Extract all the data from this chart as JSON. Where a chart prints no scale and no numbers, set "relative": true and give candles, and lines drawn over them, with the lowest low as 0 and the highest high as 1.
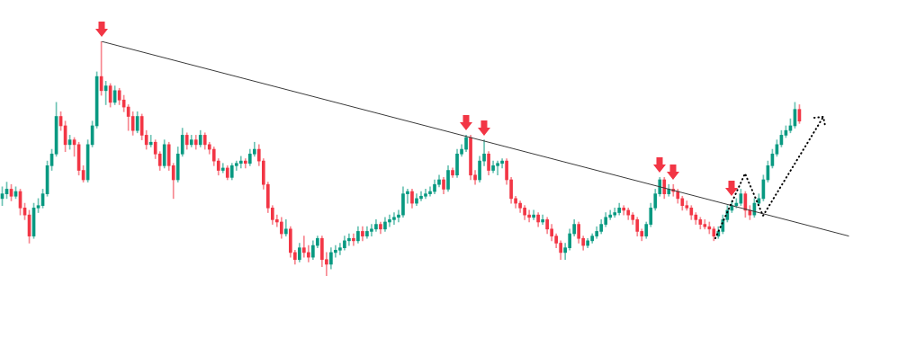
{
  "chart_data": {
    "type": "candlestick",
    "relative": true,
    "categories": [
      null,
      null,
      null,
      null,
      null,
      null,
      null,
      null,
      null,
      null,
      null,
      null,
      null,
      null,
      null,
      null,
      null,
      null,
      null,
      null,
      null,
      null,
      null,
      null,
      null,
      null,
      null,
      null,
      null,
      null,
      null,
      null,
      null,
      null,
      null,
      null,
      null,
      null,
      null,
      null,
      null,
      null,
      null,
      null,
      null,
      null,
      null,
      null,
      null,
      null,
      null,
      null,
      null,
      null,
      null,
      null,
      null,
      null,
      null,
      null,
      null,
      null,
      null,
      null,
      null,
      null,
      null,
      null,
      null,
      null,
      null,
      null,
      null,
      null,
      null,
      null,
      null,
      null,
      null,
      null,
      null,
      null,
      null,
      null,
      null,
      null,
      null,
      null,
      null,
      null,
      null,
      null,
      null,
      null,
      null,
      null,
      null,
      null,
      null,
      null,
      null,
      null,
      null,
      null,
      null,
      null,
      null,
      null,
      null,
      null,
      null,
      null,
      null,
      null,
      null,
      null,
      null,
      null,
      null,
      null,
      null,
      null,
      null,
      null,
      null,
      null,
      null,
      null,
      null,
      null,
      null,
      null,
      null,
      null,
      null,
      null,
      null,
      null,
      null,
      null,
      null,
      null,
      null,
      null,
      null,
      null,
      null,
      null,
      null,
      null,
      null,
      null,
      null,
      null,
      null,
      null,
      null,
      null,
      null,
      null,
      null,
      null,
      null,
      null,
      null,
      null,
      null,
      null,
      null,
      null,
      null,
      null,
      null,
      null,
      null,
      null,
      null,
      null,
      null,
      null,
      null,
      null,
      null,
      null,
      null,
      null,
      null,
      null,
      null
    ],
    "ohlc": [
      [
        0.33,
        0.38,
        0.3,
        0.35
      ],
      [
        0.35,
        0.4,
        0.33,
        0.37
      ],
      [
        0.37,
        0.39,
        0.32,
        0.34
      ],
      [
        0.34,
        0.38,
        0.33,
        0.36
      ],
      [
        0.36,
        0.37,
        0.26,
        0.29
      ],
      [
        0.29,
        0.31,
        0.24,
        0.26
      ],
      [
        0.26,
        0.28,
        0.14,
        0.17
      ],
      [
        0.17,
        0.31,
        0.16,
        0.29
      ],
      [
        0.29,
        0.33,
        0.27,
        0.3
      ],
      [
        0.3,
        0.37,
        0.29,
        0.35
      ],
      [
        0.35,
        0.49,
        0.34,
        0.47
      ],
      [
        0.47,
        0.54,
        0.45,
        0.52
      ],
      [
        0.52,
        0.74,
        0.51,
        0.68
      ],
      [
        0.68,
        0.7,
        0.62,
        0.64
      ],
      [
        0.64,
        0.66,
        0.53,
        0.56
      ],
      [
        0.56,
        0.6,
        0.54,
        0.58
      ],
      [
        0.58,
        0.59,
        0.51,
        0.56
      ],
      [
        0.56,
        0.57,
        0.43,
        0.45
      ],
      [
        0.45,
        0.47,
        0.4,
        0.41
      ],
      [
        0.41,
        0.58,
        0.4,
        0.56
      ],
      [
        0.56,
        0.66,
        0.55,
        0.64
      ],
      [
        0.64,
        0.87,
        0.63,
        0.85
      ],
      [
        0.85,
        1,
        0.77,
        0.79
      ],
      [
        0.79,
        0.83,
        0.73,
        0.81
      ],
      [
        0.81,
        0.82,
        0.72,
        0.74
      ],
      [
        0.74,
        0.81,
        0.73,
        0.79
      ],
      [
        0.79,
        0.8,
        0.73,
        0.75
      ],
      [
        0.75,
        0.77,
        0.7,
        0.72
      ],
      [
        0.72,
        0.73,
        0.62,
        0.68
      ],
      [
        0.68,
        0.7,
        0.6,
        0.62
      ],
      [
        0.62,
        0.7,
        0.61,
        0.68
      ],
      [
        0.68,
        0.69,
        0.58,
        0.6
      ],
      [
        0.6,
        0.62,
        0.54,
        0.56
      ],
      [
        0.56,
        0.6,
        0.55,
        0.57
      ],
      [
        0.57,
        0.58,
        0.5,
        0.52
      ],
      [
        0.52,
        0.53,
        0.45,
        0.47
      ],
      [
        0.47,
        0.58,
        0.46,
        0.56
      ],
      [
        0.56,
        0.57,
        0.45,
        0.47
      ],
      [
        0.47,
        0.48,
        0.33,
        0.41
      ],
      [
        0.41,
        0.55,
        0.4,
        0.52
      ],
      [
        0.52,
        0.63,
        0.51,
        0.6
      ],
      [
        0.6,
        0.61,
        0.54,
        0.56
      ],
      [
        0.56,
        0.6,
        0.55,
        0.58
      ],
      [
        0.58,
        0.6,
        0.54,
        0.56
      ],
      [
        0.56,
        0.62,
        0.55,
        0.6
      ],
      [
        0.6,
        0.61,
        0.54,
        0.56
      ],
      [
        0.56,
        0.57,
        0.52,
        0.54
      ],
      [
        0.54,
        0.55,
        0.47,
        0.49
      ],
      [
        0.49,
        0.5,
        0.43,
        0.45
      ],
      [
        0.45,
        0.48,
        0.44,
        0.46
      ],
      [
        0.46,
        0.47,
        0.41,
        0.42
      ],
      [
        0.42,
        0.48,
        0.41,
        0.47
      ],
      [
        0.47,
        0.49,
        0.45,
        0.48
      ],
      [
        0.48,
        0.51,
        0.46,
        0.49
      ],
      [
        0.49,
        0.5,
        0.46,
        0.48
      ],
      [
        0.48,
        0.54,
        0.47,
        0.52
      ],
      [
        0.52,
        0.57,
        0.51,
        0.54
      ],
      [
        0.54,
        0.56,
        0.47,
        0.49
      ],
      [
        0.49,
        0.5,
        0.37,
        0.39
      ],
      [
        0.39,
        0.4,
        0.27,
        0.29
      ],
      [
        0.29,
        0.3,
        0.22,
        0.24
      ],
      [
        0.24,
        0.26,
        0.21,
        0.23
      ],
      [
        0.23,
        0.25,
        0.16,
        0.18
      ],
      [
        0.18,
        0.24,
        0.17,
        0.2
      ],
      [
        0.2,
        0.21,
        0.08,
        0.1
      ],
      [
        0.1,
        0.11,
        0.05,
        0.07
      ],
      [
        0.07,
        0.14,
        0.06,
        0.12
      ],
      [
        0.12,
        0.17,
        0.08,
        0.1
      ],
      [
        0.1,
        0.13,
        0.06,
        0.08
      ],
      [
        0.08,
        0.15,
        0.07,
        0.13
      ],
      [
        0.13,
        0.17,
        0.12,
        0.16
      ],
      [
        0.16,
        0.17,
        0.04,
        0.07
      ],
      [
        0.07,
        0.1,
        0,
        0.05
      ],
      [
        0.05,
        0.12,
        0.03,
        0.1
      ],
      [
        0.1,
        0.13,
        0.08,
        0.11
      ],
      [
        0.11,
        0.14,
        0.09,
        0.12
      ],
      [
        0.12,
        0.17,
        0.11,
        0.15
      ],
      [
        0.15,
        0.18,
        0.13,
        0.16
      ],
      [
        0.16,
        0.18,
        0.13,
        0.15
      ],
      [
        0.15,
        0.21,
        0.14,
        0.19
      ],
      [
        0.19,
        0.21,
        0.15,
        0.17
      ],
      [
        0.17,
        0.21,
        0.16,
        0.19
      ],
      [
        0.19,
        0.22,
        0.17,
        0.2
      ],
      [
        0.2,
        0.24,
        0.19,
        0.22
      ],
      [
        0.22,
        0.23,
        0.18,
        0.2
      ],
      [
        0.2,
        0.25,
        0.19,
        0.23
      ],
      [
        0.23,
        0.26,
        0.21,
        0.24
      ],
      [
        0.24,
        0.27,
        0.22,
        0.25
      ],
      [
        0.25,
        0.28,
        0.23,
        0.26
      ],
      [
        0.26,
        0.38,
        0.25,
        0.35
      ],
      [
        0.35,
        0.37,
        0.31,
        0.36
      ],
      [
        0.36,
        0.37,
        0.29,
        0.31
      ],
      [
        0.31,
        0.35,
        0.3,
        0.33
      ],
      [
        0.33,
        0.36,
        0.32,
        0.34
      ],
      [
        0.34,
        0.37,
        0.33,
        0.35
      ],
      [
        0.35,
        0.38,
        0.34,
        0.36
      ],
      [
        0.36,
        0.41,
        0.35,
        0.39
      ],
      [
        0.39,
        0.43,
        0.38,
        0.41
      ],
      [
        0.41,
        0.42,
        0.35,
        0.37
      ],
      [
        0.37,
        0.47,
        0.36,
        0.45
      ],
      [
        0.45,
        0.46,
        0.42,
        0.43
      ],
      [
        0.43,
        0.54,
        0.42,
        0.52
      ],
      [
        0.52,
        0.56,
        0.51,
        0.54
      ],
      [
        0.54,
        0.6,
        0.53,
        0.59
      ],
      [
        0.59,
        0.6,
        0.41,
        0.43
      ],
      [
        0.43,
        0.45,
        0.39,
        0.41
      ],
      [
        0.41,
        0.51,
        0.4,
        0.49
      ],
      [
        0.49,
        0.58,
        0.47,
        0.52
      ],
      [
        0.52,
        0.53,
        0.43,
        0.45
      ],
      [
        0.45,
        0.49,
        0.44,
        0.47
      ],
      [
        0.47,
        0.49,
        0.43,
        0.48
      ],
      [
        0.48,
        0.5,
        0.46,
        0.49
      ],
      [
        0.49,
        0.5,
        0.39,
        0.41
      ],
      [
        0.41,
        0.42,
        0.31,
        0.33
      ],
      [
        0.33,
        0.34,
        0.29,
        0.31
      ],
      [
        0.31,
        0.32,
        0.27,
        0.29
      ],
      [
        0.29,
        0.3,
        0.24,
        0.26
      ],
      [
        0.26,
        0.28,
        0.23,
        0.25
      ],
      [
        0.25,
        0.28,
        0.24,
        0.26
      ],
      [
        0.26,
        0.27,
        0.21,
        0.23
      ],
      [
        0.23,
        0.26,
        0.22,
        0.24
      ],
      [
        0.24,
        0.25,
        0.18,
        0.2
      ],
      [
        0.2,
        0.22,
        0.15,
        0.17
      ],
      [
        0.17,
        0.18,
        0.12,
        0.14
      ],
      [
        0.14,
        0.15,
        0.07,
        0.1
      ],
      [
        0.1,
        0.14,
        0.07,
        0.12
      ],
      [
        0.12,
        0.2,
        0.11,
        0.18
      ],
      [
        0.18,
        0.24,
        0.17,
        0.22
      ],
      [
        0.22,
        0.23,
        0.14,
        0.16
      ],
      [
        0.16,
        0.17,
        0.11,
        0.13
      ],
      [
        0.13,
        0.16,
        0.12,
        0.15
      ],
      [
        0.15,
        0.18,
        0.14,
        0.17
      ],
      [
        0.17,
        0.21,
        0.16,
        0.19
      ],
      [
        0.19,
        0.24,
        0.18,
        0.22
      ],
      [
        0.22,
        0.27,
        0.21,
        0.25
      ],
      [
        0.25,
        0.28,
        0.24,
        0.26
      ],
      [
        0.26,
        0.29,
        0.25,
        0.27
      ],
      [
        0.27,
        0.31,
        0.26,
        0.29
      ],
      [
        0.29,
        0.3,
        0.26,
        0.28
      ],
      [
        0.28,
        0.29,
        0.24,
        0.26
      ],
      [
        0.26,
        0.27,
        0.22,
        0.24
      ],
      [
        0.24,
        0.25,
        0.17,
        0.19
      ],
      [
        0.19,
        0.2,
        0.15,
        0.17
      ],
      [
        0.17,
        0.23,
        0.16,
        0.22
      ],
      [
        0.22,
        0.31,
        0.21,
        0.29
      ],
      [
        0.29,
        0.37,
        0.28,
        0.35
      ],
      [
        0.35,
        0.42,
        0.34,
        0.41
      ],
      [
        0.41,
        0.42,
        0.33,
        0.35
      ],
      [
        0.35,
        0.39,
        0.34,
        0.37
      ],
      [
        0.37,
        0.39,
        0.34,
        0.36
      ],
      [
        0.36,
        0.37,
        0.31,
        0.33
      ],
      [
        0.33,
        0.34,
        0.28,
        0.3
      ],
      [
        0.3,
        0.32,
        0.28,
        0.29
      ],
      [
        0.29,
        0.3,
        0.24,
        0.26
      ],
      [
        0.26,
        0.27,
        0.22,
        0.24
      ],
      [
        0.24,
        0.25,
        0.2,
        0.22
      ],
      [
        0.22,
        0.24,
        0.2,
        0.21
      ],
      [
        0.21,
        0.23,
        0.18,
        0.2
      ],
      [
        0.2,
        0.21,
        0.15,
        0.17
      ],
      [
        0.17,
        0.21,
        0.16,
        0.19
      ],
      [
        0.19,
        0.26,
        0.18,
        0.24
      ],
      [
        0.24,
        0.3,
        0.23,
        0.28
      ],
      [
        0.28,
        0.32,
        0.27,
        0.3
      ],
      [
        0.3,
        0.33,
        0.29,
        0.31
      ],
      [
        0.31,
        0.37,
        0.3,
        0.35
      ],
      [
        0.35,
        0.36,
        0.25,
        0.28
      ],
      [
        0.28,
        0.3,
        0.24,
        0.26
      ],
      [
        0.26,
        0.33,
        0.25,
        0.31
      ],
      [
        0.31,
        0.35,
        0.3,
        0.33
      ],
      [
        0.33,
        0.43,
        0.32,
        0.41
      ],
      [
        0.41,
        0.49,
        0.4,
        0.47
      ],
      [
        0.47,
        0.54,
        0.46,
        0.52
      ],
      [
        0.52,
        0.58,
        0.51,
        0.56
      ],
      [
        0.56,
        0.62,
        0.55,
        0.6
      ],
      [
        0.6,
        0.64,
        0.59,
        0.62
      ],
      [
        0.62,
        0.67,
        0.61,
        0.64
      ],
      [
        0.64,
        0.74,
        0.63,
        0.71
      ],
      [
        0.71,
        0.73,
        0.65,
        0.66
      ],
      null,
      null,
      null,
      null,
      null,
      null,
      null,
      null,
      null,
      null,
      null
    ],
    "colors": [
      "#089981",
      "#089981",
      "#f23645",
      "#089981",
      "#f23645",
      "#f23645",
      "#f23645",
      "#089981",
      "#089981",
      "#089981",
      "#089981",
      "#089981",
      "#089981",
      "#f23645",
      "#f23645",
      "#089981",
      "#f23645",
      "#f23645",
      "#f23645",
      "#089981",
      "#089981",
      "#089981",
      "#f23645",
      "#089981",
      "#f23645",
      "#089981",
      "#f23645",
      "#f23645",
      "#f23645",
      "#f23645",
      "#089981",
      "#f23645",
      "#f23645",
      "#089981",
      "#f23645",
      "#f23645",
      "#089981",
      "#f23645",
      "#f23645",
      "#089981",
      "#089981",
      "#f23645",
      "#089981",
      "#f23645",
      "#089981",
      "#f23645",
      "#f23645",
      "#f23645",
      "#f23645",
      "#089981",
      "#f23645",
      "#089981",
      "#089981",
      "#089981",
      "#f23645",
      "#089981",
      "#089981",
      "#f23645",
      "#f23645",
      "#f23645",
      "#f23645",
      "#f23645",
      "#f23645",
      "#089981",
      "#f23645",
      "#f23645",
      "#089981",
      "#f23645",
      "#f23645",
      "#089981",
      "#089981",
      "#f23645",
      "#f23645",
      "#089981",
      "#089981",
      "#089981",
      "#089981",
      "#089981",
      "#f23645",
      "#089981",
      "#f23645",
      "#089981",
      "#089981",
      "#089981",
      "#f23645",
      "#089981",
      "#089981",
      "#089981",
      "#089981",
      "#089981",
      "#089981",
      "#f23645",
      "#089981",
      "#089981",
      "#089981",
      "#089981",
      "#089981",
      "#089981",
      "#f23645",
      "#089981",
      "#f23645",
      "#089981",
      "#089981",
      "#089981",
      "#f23645",
      "#f23645",
      "#089981",
      "#089981",
      "#f23645",
      "#089981",
      "#089981",
      "#089981",
      "#f23645",
      "#f23645",
      "#f23645",
      "#f23645",
      "#f23645",
      "#f23645",
      "#089981",
      "#f23645",
      "#089981",
      "#f23645",
      "#f23645",
      "#f23645",
      "#f23645",
      "#089981",
      "#089981",
      "#089981",
      "#f23645",
      "#f23645",
      "#089981",
      "#089981",
      "#089981",
      "#089981",
      "#089981",
      "#089981",
      "#089981",
      "#089981",
      "#f23645",
      "#f23645",
      "#f23645",
      "#f23645",
      "#f23645",
      "#089981",
      "#089981",
      "#089981",
      "#089981",
      "#f23645",
      "#089981",
      "#f23645",
      "#f23645",
      "#f23645",
      "#f23645",
      "#f23645",
      "#f23645",
      "#f23645",
      "#f23645",
      "#f23645",
      "#f23645",
      "#089981",
      "#089981",
      "#089981",
      "#089981",
      "#089981",
      "#089981",
      "#f23645",
      "#f23645",
      "#089981",
      "#089981",
      "#089981",
      "#089981",
      "#089981",
      "#089981",
      "#089981",
      "#089981",
      "#089981",
      "#089981",
      "#f23645",
      null,
      null,
      null,
      null,
      null,
      null,
      null,
      null,
      null,
      null,
      null
    ],
    "series": [
      {
        "type": "line",
        "color": "#3a3a3a",
        "values": [
          null,
          null,
          null,
          null,
          null,
          null,
          null,
          null,
          null,
          null,
          null,
          null,
          null,
          null,
          null,
          null,
          null,
          null,
          null,
          null,
          null,
          null,
          1,
          null,
          null,
          null,
          null,
          null,
          null,
          null,
          null,
          null,
          null,
          null,
          null,
          null,
          null,
          null,
          null,
          null,
          null,
          null,
          null,
          null,
          null,
          null,
          null,
          null,
          null,
          null,
          null,
          null,
          null,
          null,
          null,
          null,
          null,
          null,
          null,
          null,
          null,
          null,
          null,
          null,
          null,
          null,
          null,
          null,
          null,
          null,
          null,
          null,
          null,
          null,
          null,
          null,
          null,
          null,
          null,
          null,
          null,
          null,
          null,
          null,
          null,
          null,
          null,
          null,
          null,
          null,
          null,
          null,
          null,
          null,
          null,
          null,
          null,
          null,
          null,
          null,
          null,
          null,
          null,
          null,
          null,
          null,
          null,
          null,
          null,
          null,
          null,
          null,
          null,
          null,
          null,
          null,
          null,
          null,
          null,
          null,
          null,
          null,
          null,
          null,
          null,
          null,
          null,
          null,
          null,
          null,
          null,
          null,
          null,
          null,
          null,
          null,
          null,
          null,
          null,
          null,
          null,
          null,
          null,
          null,
          null,
          null,
          null,
          null,
          null,
          null,
          null,
          null,
          null,
          null,
          null,
          null,
          null,
          null,
          null,
          null,
          null,
          null,
          null,
          null,
          null,
          null,
          null,
          null,
          null,
          null,
          null,
          null,
          null,
          null,
          null,
          null,
          null,
          null,
          null,
          null,
          null,
          null,
          null,
          null,
          null,
          null,
          null,
          null,
          0.17
        ]
      }
    ]
  }
}
